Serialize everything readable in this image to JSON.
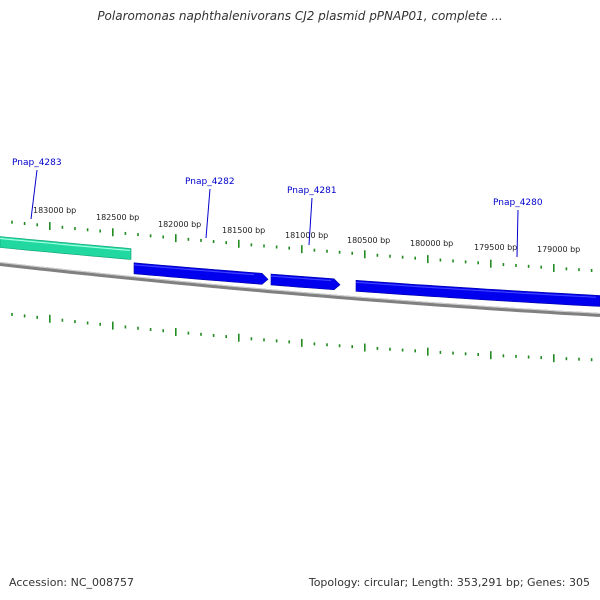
{
  "title": "Polaromonas naphthalenivorans CJ2 plasmid pPNAP01, complete ...",
  "footer": {
    "accession": "Accession: NC_008757",
    "summary": "Topology: circular; Length: 353,291 bp; Genes: 305"
  },
  "colors": {
    "tick": "#228B22",
    "gene_fwd": "#0000ee",
    "gene_highlight": "#20d8a0",
    "backbone": "#808080",
    "label": "#0000cc"
  },
  "ticks": [
    {
      "label": "183000 bp"
    },
    {
      "label": "182500 bp"
    },
    {
      "label": "182000 bp"
    },
    {
      "label": "181500 bp"
    },
    {
      "label": "181000 bp"
    },
    {
      "label": "180500 bp"
    },
    {
      "label": "180000 bp"
    },
    {
      "label": "179500 bp"
    },
    {
      "label": "179000 bp"
    }
  ],
  "genes": [
    {
      "name": "Pnap_4283",
      "strand": "+",
      "highlight": true
    },
    {
      "name": "Pnap_4282",
      "strand": "+",
      "highlight": false
    },
    {
      "name": "Pnap_4281",
      "strand": "+",
      "highlight": false
    },
    {
      "name": "Pnap_4280",
      "strand": "+",
      "highlight": false
    }
  ]
}
